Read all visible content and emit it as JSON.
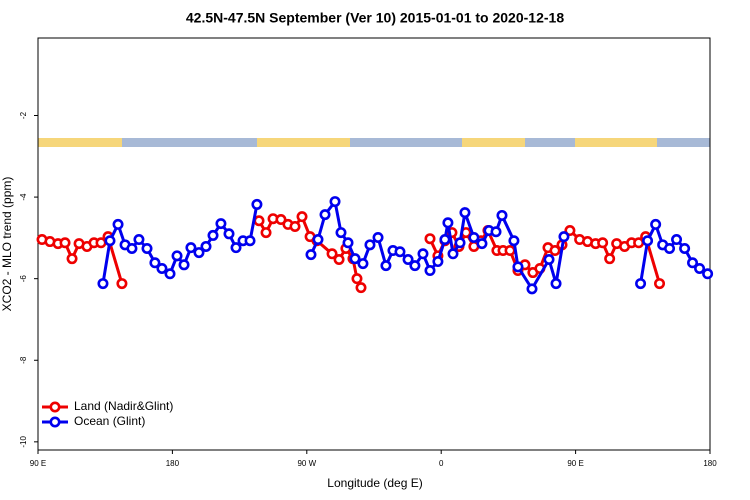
{
  "chart_data": {
    "type": "line",
    "title": "42.5N-47.5N September (Ver 10)   2015-01-01 to 2020-12-18",
    "xlabel": "Longitude (deg E)",
    "ylabel": "XCO2 - MLO trend (ppm)",
    "xlim": [
      90,
      540
    ],
    "xticks": [
      {
        "value": 90,
        "label": "90 E"
      },
      {
        "value": 180,
        "label": "180"
      },
      {
        "value": 270,
        "label": "90 W"
      },
      {
        "value": 360,
        "label": "0"
      },
      {
        "value": 450,
        "label": "90 E"
      },
      {
        "value": 540,
        "label": "180"
      }
    ],
    "ylim": [
      -10.2,
      -0.1
    ],
    "yticks": [
      -2,
      -4,
      -6,
      -8,
      -10
    ],
    "legend": "lower left",
    "series": [
      {
        "name": "Land (Nadir&Glint)",
        "color": "#ee0000",
        "x": [
          92.7,
          98,
          103.4,
          108.1,
          112.8,
          117.5,
          122.8,
          127.5,
          132.2,
          136.9,
          146.2,
          null,
          238,
          242.7,
          247.4,
          252.7,
          257.4,
          262.1,
          266.8,
          272.2,
          276.8,
          286.9,
          291.6,
          296.2,
          300.9,
          303.6,
          306.3,
          null,
          352.5,
          357.8,
          362.5,
          367.2,
          371.9,
          376.6,
          381.9,
          386.6,
          391.3,
          397.3,
          401.4,
          406.1,
          411.4,
          416.1,
          421.4,
          426.1,
          431.5,
          436.2,
          440.9,
          446.2,
          452.7,
          458,
          463.4,
          468.1,
          472.8,
          477.5,
          482.8,
          487.5,
          492.2,
          496.9,
          506.2
        ],
        "values": [
          -5.04,
          -5.09,
          -5.14,
          -5.12,
          -5.51,
          -5.14,
          -5.21,
          -5.12,
          -5.12,
          -4.97,
          -6.12,
          null,
          -4.58,
          -4.87,
          -4.53,
          -4.55,
          -4.67,
          -4.72,
          -4.48,
          -4.97,
          -5.07,
          -5.39,
          -5.53,
          -5.26,
          -5.51,
          -6.0,
          -6.22,
          null,
          -5.02,
          -5.44,
          -5.07,
          -4.87,
          -5.21,
          -4.87,
          -5.21,
          -5.07,
          -4.82,
          -5.31,
          -5.31,
          -5.31,
          -5.8,
          -5.66,
          -5.85,
          -5.75,
          -5.24,
          -5.31,
          -5.17,
          -4.82,
          -5.04,
          -5.09,
          -5.14,
          -5.12,
          -5.51,
          -5.14,
          -5.21,
          -5.12,
          -5.12,
          -4.97,
          -6.12
        ]
      },
      {
        "name": "Ocean (Glint)",
        "color": "#0000ee",
        "x": [
          133.5,
          138.2,
          143.6,
          148.3,
          152.9,
          157.6,
          163,
          168.3,
          173,
          178.4,
          183.1,
          187.8,
          192.4,
          197.8,
          202.5,
          207.2,
          212.5,
          217.9,
          222.6,
          227.3,
          232,
          236.6,
          null,
          272.8,
          277.5,
          282.2,
          288.9,
          292.9,
          297.6,
          302.3,
          307.6,
          312.3,
          317.7,
          323,
          327.7,
          332.4,
          337.8,
          342.4,
          347.8,
          352.5,
          357.8,
          362.5,
          364.5,
          367.9,
          372.6,
          375.9,
          381.9,
          387.3,
          392,
          396.7,
          400.7,
          408.7,
          411.4,
          420.8,
          432.2,
          436.9,
          442.2,
          null,
          493.5,
          498.2,
          503.6,
          508.3,
          512.9,
          517.6,
          523,
          528.3,
          533,
          538.4
        ],
        "values": [
          -6.12,
          -5.07,
          -4.67,
          -5.17,
          -5.26,
          -5.04,
          -5.26,
          -5.61,
          -5.75,
          -5.88,
          -5.44,
          -5.66,
          -5.24,
          -5.36,
          -5.21,
          -4.94,
          -4.65,
          -4.9,
          -5.24,
          -5.07,
          -5.07,
          -4.18,
          null,
          -5.41,
          -5.04,
          -4.43,
          -4.11,
          -4.87,
          -5.12,
          -5.51,
          -5.63,
          -5.17,
          -4.99,
          -5.68,
          -5.31,
          -5.34,
          -5.53,
          -5.68,
          -5.39,
          -5.8,
          -5.58,
          -5.04,
          -4.63,
          -5.39,
          -5.12,
          -4.38,
          -4.99,
          -5.14,
          -4.82,
          -4.85,
          -4.45,
          -5.07,
          -5.71,
          -6.25,
          -5.53,
          -6.12,
          -4.97,
          null,
          -6.12,
          -5.07,
          -4.67,
          -5.17,
          -5.26,
          -5.04,
          -5.26,
          -5.61,
          -5.75,
          -5.88
        ]
      }
    ]
  }
}
